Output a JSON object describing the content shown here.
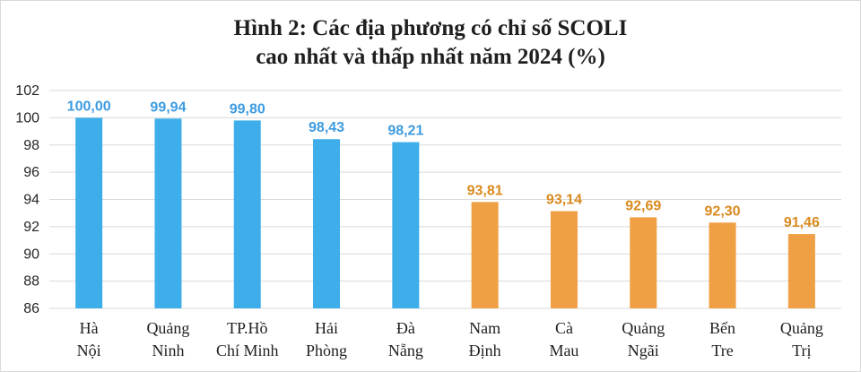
{
  "chart_data": {
    "type": "bar",
    "title_lines": [
      "Hình 2: Các địa phương có chỉ số SCOLI",
      "cao nhất và thấp nhất năm 2024 (%)"
    ],
    "categories": [
      [
        "Hà",
        "Nội"
      ],
      [
        "Quảng",
        "Ninh"
      ],
      [
        "TP.Hồ",
        "Chí Minh"
      ],
      [
        "Hải",
        "Phòng"
      ],
      [
        "Đà",
        "Nẵng"
      ],
      [
        "Nam",
        "Định"
      ],
      [
        "Cà",
        "Mau"
      ],
      [
        "Quảng",
        "Ngãi"
      ],
      [
        "Bến",
        "Tre"
      ],
      [
        "Quảng",
        "Trị"
      ]
    ],
    "values": [
      100.0,
      99.94,
      99.8,
      98.43,
      98.21,
      93.81,
      93.14,
      92.69,
      92.3,
      91.46
    ],
    "value_labels": [
      "100,00",
      "99,94",
      "99,80",
      "98,43",
      "98,21",
      "93,81",
      "93,14",
      "92,69",
      "92,30",
      "91,46"
    ],
    "bar_colors": [
      "#3DAEEA",
      "#3DAEEA",
      "#3DAEEA",
      "#3DAEEA",
      "#3DAEEA",
      "#F0A044",
      "#F0A044",
      "#F0A044",
      "#F0A044",
      "#F0A044"
    ],
    "label_colors": [
      "#3D9BE0",
      "#3D9BE0",
      "#3D9BE0",
      "#3D9BE0",
      "#3D9BE0",
      "#D98A1E",
      "#D98A1E",
      "#D98A1E",
      "#D98A1E",
      "#D98A1E"
    ],
    "ylim": [
      86,
      102
    ],
    "yticks": [
      86,
      88,
      90,
      92,
      94,
      96,
      98,
      100,
      102
    ],
    "grid": true,
    "gridline_color": "#d9d9d9"
  }
}
